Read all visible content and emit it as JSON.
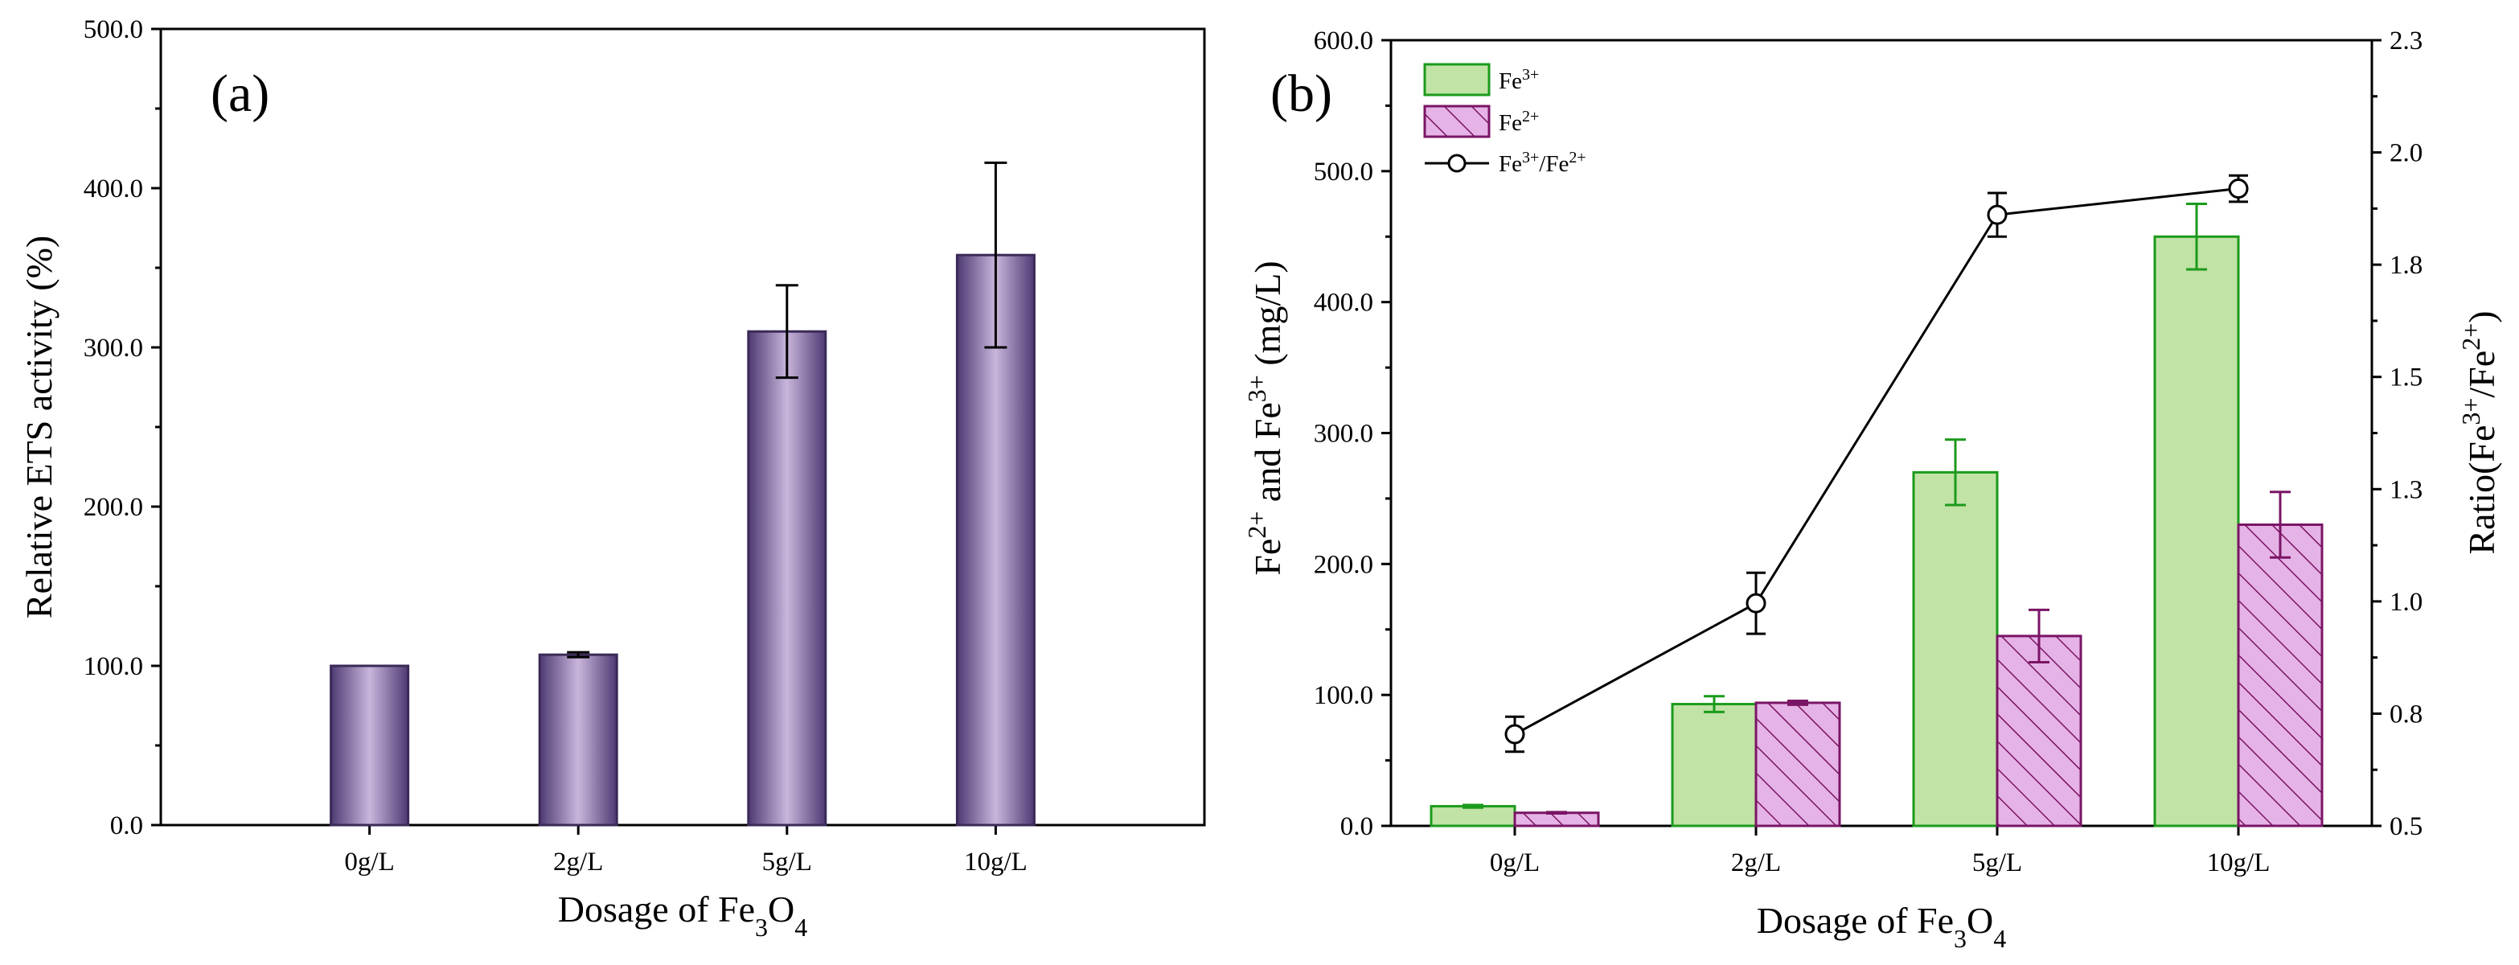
{
  "colors": {
    "ets_bar_edge": "#3b2a57",
    "ets_bar_light": "#c9b6dc",
    "ets_bar_dark": "#4e3a72",
    "fe3_fill": "#c1e3a6",
    "fe3_edge": "#1b9a1b",
    "fe2_fill": "#e6b3e6",
    "fe2_edge": "#7a1464",
    "ratio_line": "#000000"
  },
  "panel_a": {
    "label": "(a)",
    "ylabel": "Relative ETS activity (%)",
    "xlabel": "Dosage of Fe3O4",
    "chart_data": {
      "type": "bar",
      "title": "",
      "categories": [
        "0g/L",
        "2g/L",
        "5g/L",
        "10g/L"
      ],
      "values": [
        100,
        107,
        310,
        358
      ],
      "errors": [
        0,
        1.5,
        29,
        58
      ],
      "ylim": [
        0,
        500
      ],
      "yticks": [
        "0.0",
        "100.0",
        "200.0",
        "300.0",
        "400.0",
        "500.0"
      ],
      "xlabel": "Dosage of Fe3O4",
      "ylabel": "Relative ETS activity (%)"
    }
  },
  "panel_b": {
    "label": "(b)",
    "ylabel_left": "Fe2+ and Fe3+ (mg/L)",
    "ylabel_right": "Ratio(Fe3+/Fe2+)",
    "xlabel": "Dosage of Fe3O4",
    "legend": {
      "fe3": "Fe3+",
      "fe2": "Fe2+",
      "ratio": "Fe3+/Fe2+"
    },
    "chart_data": {
      "type": "bar",
      "title": "",
      "categories": [
        "0g/L",
        "2g/L",
        "5g/L",
        "10g/L"
      ],
      "series": [
        {
          "name": "Fe3+",
          "axis": "left",
          "values": [
            15,
            93,
            270,
            450
          ],
          "errors": [
            1,
            6,
            25,
            25
          ]
        },
        {
          "name": "Fe2+",
          "axis": "left",
          "values": [
            10,
            94,
            145,
            230
          ],
          "errors": [
            0.5,
            1.5,
            20,
            25
          ]
        },
        {
          "name": "Fe3+/Fe2+",
          "axis": "right",
          "type": "line",
          "values": [
            0.71,
            1.01,
            1.9,
            1.96
          ],
          "errors": [
            0.04,
            0.07,
            0.05,
            0.03
          ]
        }
      ],
      "ylim_left": [
        0,
        600
      ],
      "ylim_right": [
        0.5,
        2.3
      ],
      "yticks_left": [
        "0.0",
        "100.0",
        "200.0",
        "300.0",
        "400.0",
        "500.0",
        "600.0"
      ],
      "yticks_right": [
        "0.5",
        "0.8",
        "1.0",
        "1.3",
        "1.5",
        "1.8",
        "2.0",
        "2.3"
      ],
      "xlabel": "Dosage of Fe3O4",
      "ylabel": "Fe2+ and Fe3+ (mg/L)",
      "ylabel_right": "Ratio(Fe3+/Fe2+)",
      "legend_position": "top-left"
    }
  }
}
